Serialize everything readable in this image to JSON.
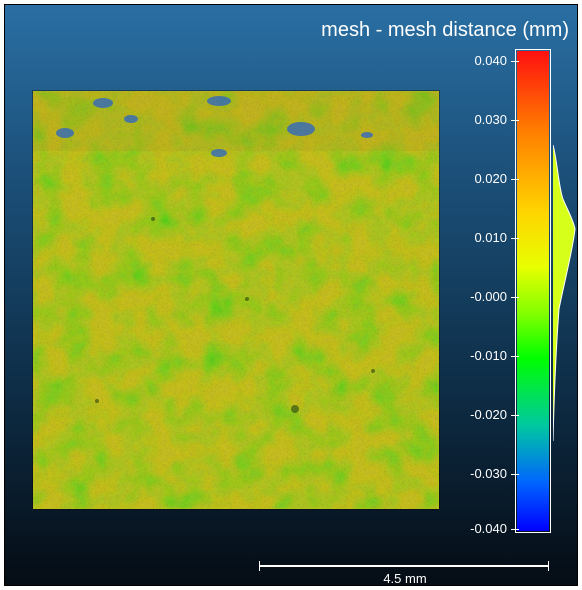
{
  "title": "mesh - mesh distance (mm)",
  "colorbar": {
    "ticks": [
      "0.040",
      "0.030",
      "0.020",
      "0.010",
      "-0.000",
      "-0.010",
      "-0.020",
      "-0.030",
      "-0.040"
    ],
    "range": [
      -0.04,
      0.04
    ],
    "colors": [
      "#ff1010",
      "#ff7a00",
      "#ffd200",
      "#e8ff00",
      "#7fff00",
      "#00ff00",
      "#00c8a0",
      "#0064ff",
      "#0000ff"
    ]
  },
  "scale_bar": {
    "label": "4.5 mm"
  },
  "surface": {
    "description_icon": "deviation-colormap-surface"
  }
}
